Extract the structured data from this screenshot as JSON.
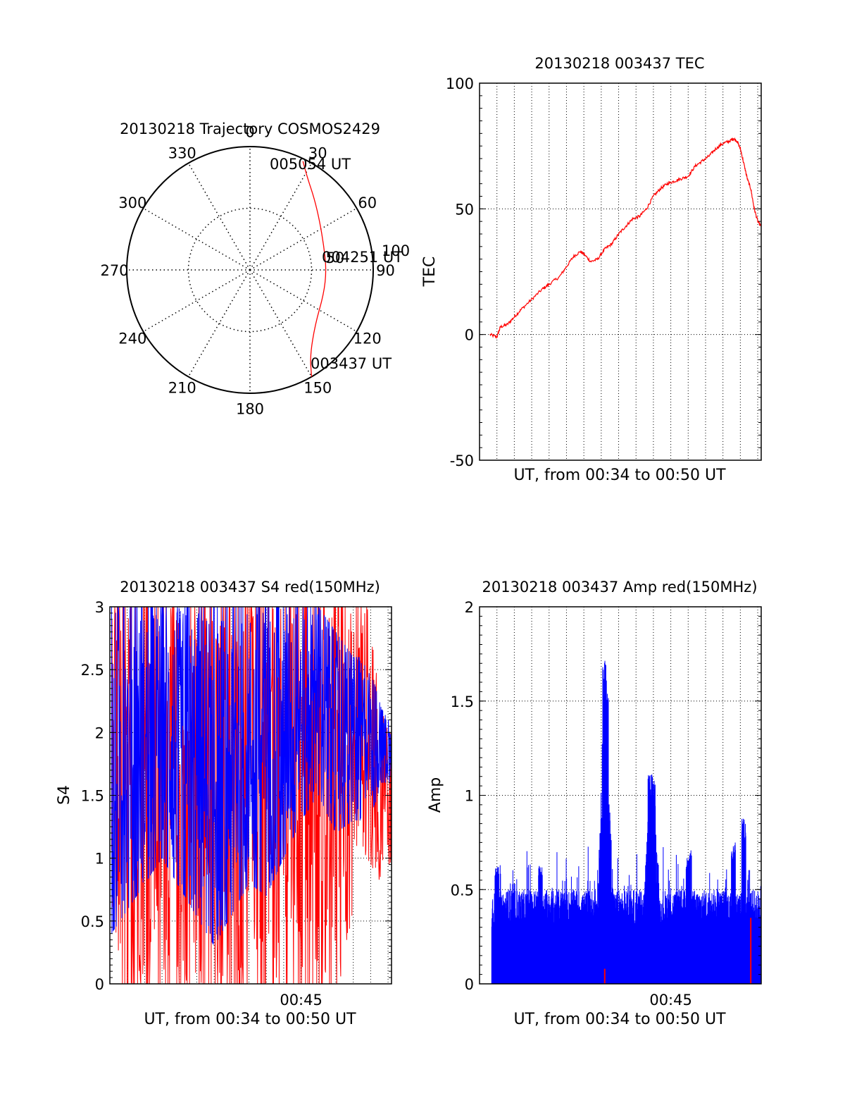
{
  "colors": {
    "primary": "#ff0000",
    "secondary": "#0000ff",
    "axis": "#000000",
    "grid": "#000000",
    "background": "#ffffff"
  },
  "chart_data": [
    {
      "id": "trajectory",
      "type": "polar",
      "title": "20130218 Trajectory COSMOS2429",
      "angle_ticks": [
        "0",
        "30",
        "60",
        "90",
        "120",
        "150",
        "180",
        "210",
        "240",
        "270",
        "300",
        "330"
      ],
      "angle_tick_values": [
        0,
        30,
        60,
        90,
        120,
        150,
        180,
        210,
        240,
        270,
        300,
        330
      ],
      "radial_ticks": [
        "50",
        "100"
      ],
      "radial_tick_values": [
        50,
        100
      ],
      "radial_max": 100,
      "grid": true,
      "series": [
        {
          "points": [
            [
              150,
              100
            ],
            [
              145,
              85
            ],
            [
              130,
              69
            ],
            [
              108,
              63
            ],
            [
              90,
              62
            ],
            [
              72,
              63
            ],
            [
              55,
              69
            ],
            [
              42,
              78
            ],
            [
              32,
              88
            ],
            [
              26,
              98
            ]
          ]
        }
      ],
      "annotations": [
        {
          "text": "005054 UT",
          "angle": 26,
          "r": 98
        },
        {
          "text": "004251 UT",
          "angle": 90,
          "r": 62
        },
        {
          "text": "003437 UT",
          "angle": 150,
          "r": 100
        }
      ]
    },
    {
      "id": "tec",
      "type": "line",
      "title": "20130218 003437 TEC",
      "xlabel": "UT, from 00:34 to 00:50 UT",
      "ylabel": "TEC",
      "ylim": [
        -50,
        100
      ],
      "yticks": [
        -50,
        0,
        50,
        100
      ],
      "xlim_minutes": [
        34,
        50.2
      ],
      "grid": true,
      "series": [
        {
          "x_minutes": [
            34.6,
            35.0,
            35.2,
            35.6,
            36.0,
            36.4,
            37.0,
            37.6,
            38.0,
            38.6,
            39.0,
            39.4,
            39.8,
            40.0,
            40.4,
            40.8,
            41.2,
            41.6,
            42.0,
            42.4,
            42.8,
            43.2,
            43.6,
            44.0,
            44.4,
            44.8,
            45.2,
            45.6,
            46.0,
            46.4,
            46.8,
            47.2,
            47.6,
            48.0,
            48.4,
            48.6,
            48.8,
            49.0,
            49.2,
            49.4,
            49.6,
            49.8,
            50.0,
            50.2
          ],
          "values": [
            0,
            -1,
            3,
            4,
            7,
            10,
            14,
            18,
            20,
            23,
            27,
            31,
            33,
            32,
            29,
            30,
            34,
            36,
            40,
            43,
            46,
            47,
            50,
            55,
            58,
            60,
            61,
            62,
            63,
            67,
            69,
            71,
            74,
            76,
            77,
            78,
            77,
            74,
            68,
            62,
            58,
            50,
            45,
            43
          ]
        }
      ]
    },
    {
      "id": "s4",
      "type": "line",
      "title": "20130218 003437 S4 red(150MHz)",
      "xlabel": "UT, from 00:34 to 00:50 UT",
      "ylabel": "S4",
      "ylim": [
        0,
        3
      ],
      "yticks": [
        0,
        0.5,
        1,
        1.5,
        2,
        2.5,
        3
      ],
      "ytick_labels": [
        "0",
        "0.5",
        "1",
        "1.5",
        "2",
        "2.5",
        "3"
      ],
      "xlim_minutes": [
        34,
        50.2
      ],
      "xtick_label": "00:45",
      "xtick_value": 45,
      "grid": true,
      "series": [
        {
          "color_key": "primary",
          "x_minutes": [
            34.1,
            40.0,
            44.0,
            45.6,
            46.4,
            47.2,
            48.0,
            48.4,
            48.8,
            49.2,
            49.6,
            50.0,
            50.2
          ],
          "envelope_low": [
            0,
            0,
            0,
            0,
            0,
            0,
            0.6,
            1.1,
            1.0,
            0.9,
            0.8,
            0.9,
            1.0
          ],
          "envelope_high": [
            3,
            3,
            3,
            3,
            3,
            3,
            3,
            3,
            3,
            2.6,
            2.2,
            2.0,
            2.0
          ]
        },
        {
          "color_key": "secondary",
          "x_minutes": [
            34.1,
            37.0,
            40.0,
            42.0,
            43.0,
            44.0,
            45.0,
            46.0,
            47.0,
            48.0,
            48.4,
            48.8,
            49.2,
            49.6,
            50.0,
            50.2
          ],
          "envelope_low": [
            0.4,
            1.0,
            0.3,
            0.8,
            0.7,
            1.0,
            1.3,
            1.5,
            1.2,
            1.3,
            1.3,
            1.5,
            1.4,
            1.6,
            1.6,
            1.6
          ],
          "envelope_high": [
            3,
            3,
            3,
            3,
            3,
            3,
            3,
            3,
            2.8,
            2.6,
            2.6,
            2.5,
            2.4,
            2.2,
            2.1,
            2.1
          ]
        }
      ]
    },
    {
      "id": "amp",
      "type": "line",
      "title": "20130218 003437 Amp red(150MHz)",
      "xlabel": "UT, from 00:34 to 00:50 UT",
      "ylabel": "Amp",
      "ylim": [
        0,
        2
      ],
      "yticks": [
        0,
        0.5,
        1,
        1.5,
        2
      ],
      "ytick_labels": [
        "0",
        "0.5",
        "1",
        "1.5",
        "2"
      ],
      "xlim_minutes": [
        34,
        50.2
      ],
      "xtick_label": "00:45",
      "xtick_value": 45,
      "grid": true,
      "series": [
        {
          "color_key": "secondary",
          "baseline": 0.3,
          "noise_top": 0.5,
          "peaks": [
            [
              41.2,
              1.75
            ],
            [
              41.3,
              1.6
            ],
            [
              43.8,
              1.12
            ],
            [
              44.0,
              1.1
            ],
            [
              49.2,
              0.88
            ],
            [
              48.6,
              0.75
            ],
            [
              35.0,
              0.62
            ],
            [
              37.5,
              0.63
            ],
            [
              46.0,
              0.7
            ]
          ]
        },
        {
          "color_key": "primary",
          "marks": [
            [
              41.2,
              0.08
            ],
            [
              49.6,
              0.35
            ]
          ]
        }
      ]
    }
  ]
}
